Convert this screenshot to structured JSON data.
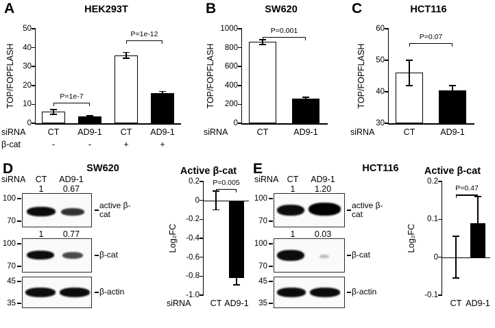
{
  "figure": {
    "background": "#ffffff",
    "bar_fill_control": "#ffffff",
    "bar_fill_knockdown": "#000000",
    "panels": [
      {
        "letter": "A",
        "title": "HEK293T"
      },
      {
        "letter": "B",
        "title": "SW620"
      },
      {
        "letter": "C",
        "title": "HCT116"
      },
      {
        "letter": "D",
        "title": "SW620"
      },
      {
        "letter": "E",
        "title": "HCT116"
      }
    ]
  },
  "chart_data": [
    {
      "panel": "A",
      "type": "bar",
      "title": "HEK293T",
      "ylabel": "TOP/FOPFLASH",
      "ylim": [
        0,
        50
      ],
      "yticks": [
        "0",
        "10",
        "20",
        "30",
        "40",
        "50"
      ],
      "categories": [
        "CT",
        "AD9-1",
        "CT",
        "AD9-1"
      ],
      "values": [
        6,
        3.5,
        36,
        16
      ],
      "errors": [
        1.3,
        0.4,
        1.5,
        0.8
      ],
      "bar_fills": [
        "#ffffff",
        "#000000",
        "#ffffff",
        "#000000"
      ],
      "label_rows": [
        {
          "header": "siRNA",
          "values": [
            "CT",
            "AD9-1",
            "CT",
            "AD9-1"
          ]
        },
        {
          "header": "β-cat",
          "values": [
            "-",
            "-",
            "+",
            "+"
          ]
        }
      ],
      "significance": [
        {
          "from": 0,
          "to": 1,
          "label": "P=1e-7",
          "y": 11
        },
        {
          "from": 2,
          "to": 3,
          "label": "P=1e-12",
          "y": 44
        }
      ]
    },
    {
      "panel": "B",
      "type": "bar",
      "title": "SW620",
      "ylabel": "TOP/FOPFLASH",
      "ylim": [
        0,
        1000
      ],
      "yticks": [
        "0",
        "200",
        "400",
        "600",
        "800",
        "1000"
      ],
      "categories": [
        "CT",
        "AD9-1"
      ],
      "values": [
        860,
        260
      ],
      "errors": [
        25,
        15
      ],
      "bar_fills": [
        "#ffffff",
        "#000000"
      ],
      "label_rows": [
        {
          "header": "siRNA",
          "values": [
            "CT",
            "AD9-1"
          ]
        }
      ],
      "significance": [
        {
          "from": 0,
          "to": 1,
          "label": "P=0.001",
          "y": 915
        }
      ]
    },
    {
      "panel": "C",
      "type": "bar",
      "title": "HCT116",
      "ylabel": "TOP/FOPFLASH",
      "ylim": [
        30,
        60
      ],
      "yticks": [
        "30",
        "40",
        "50",
        "60"
      ],
      "categories": [
        "CT",
        "AD9-1"
      ],
      "values": [
        46,
        40.5
      ],
      "errors": [
        4,
        1.5
      ],
      "bar_fills": [
        "#ffffff",
        "#000000"
      ],
      "label_rows": [
        {
          "header": "siRNA",
          "values": [
            "CT",
            "AD9-1"
          ]
        }
      ],
      "significance": [
        {
          "from": 0,
          "to": 1,
          "label": "P=0.07",
          "y": 55.5
        }
      ]
    },
    {
      "panel": "D",
      "type": "bar",
      "title": "Active β-cat",
      "ylabel": "Log₂FC",
      "ylim": [
        -1.0,
        0.2
      ],
      "yticks": [
        "0.2",
        "0",
        "-0.2",
        "-0.4",
        "-0.6",
        "-0.8",
        "-1.0"
      ],
      "categories": [
        "CT",
        "AD9-1"
      ],
      "values": [
        0,
        -0.82
      ],
      "errors": [
        0.1,
        0.07
      ],
      "baseline": 0,
      "bar_fills": [
        "#ffffff",
        "#000000"
      ],
      "label_rows": [
        {
          "header": "siRNA",
          "values": [
            "CT",
            "AD9-1"
          ]
        }
      ],
      "significance": [
        {
          "from": 0,
          "to": 1,
          "label": "P=0.005",
          "y": 0.12
        }
      ]
    },
    {
      "panel": "E",
      "type": "bar",
      "title": "Active β-cat",
      "ylabel": "Log₂FC",
      "ylim": [
        -0.1,
        0.2
      ],
      "yticks": [
        "0.2",
        "0.1",
        "0",
        "-0.1"
      ],
      "categories": [
        "CT",
        "AD9-1"
      ],
      "values": [
        0,
        0.09
      ],
      "errors": [
        0.055,
        0.07
      ],
      "baseline": 0,
      "bar_fills": [
        "#ffffff",
        "#000000"
      ],
      "label_rows": [
        {
          "header": "",
          "values": [
            "CT",
            "AD9-1"
          ]
        }
      ],
      "significance": [
        {
          "from": 0,
          "to": 1,
          "label": "P=0.47",
          "y": 0.165
        }
      ]
    }
  ],
  "blots": {
    "D": {
      "cell_line": "SW620",
      "sirna_label": "siRNA",
      "lanes": [
        "CT",
        "AD9-1"
      ],
      "rows": [
        {
          "quant": [
            "1",
            "0.67"
          ],
          "markers": [
            "100",
            "70"
          ],
          "label": "active β-cat"
        },
        {
          "quant": [
            "1",
            "0.77"
          ],
          "markers": [
            "100",
            "70"
          ],
          "label": "β-cat"
        },
        {
          "quant": [],
          "markers": [
            "45",
            "35"
          ],
          "label": "β-actin"
        }
      ]
    },
    "E": {
      "cell_line": "HCT116",
      "sirna_label": "siRNA",
      "lanes": [
        "CT",
        "AD9-1"
      ],
      "rows": [
        {
          "quant": [
            "1",
            "1.20"
          ],
          "markers": [
            "100",
            "70"
          ],
          "label": "active β-cat"
        },
        {
          "quant": [
            "1",
            "0.03"
          ],
          "markers": [
            "100",
            "70"
          ],
          "label": "β-cat"
        },
        {
          "quant": [],
          "markers": [
            "45",
            "35"
          ],
          "label": "β-actin"
        }
      ]
    }
  }
}
